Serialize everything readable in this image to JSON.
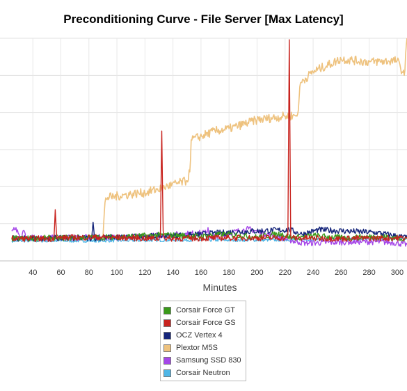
{
  "chart_data": {
    "type": "line",
    "title": "Preconditioning Curve - File Server [Max Latency]",
    "xlabel": "Minutes",
    "ylabel": "",
    "xlim": [
      25,
      307
    ],
    "ylim": [
      0,
      300
    ],
    "x_ticks": [
      40,
      60,
      80,
      100,
      120,
      140,
      160,
      180,
      200,
      220,
      240,
      260,
      280,
      300
    ],
    "y_gridlines": [
      0,
      50,
      100,
      150,
      200,
      250,
      300
    ],
    "grid": true,
    "legend_position": "bottom-center",
    "series": [
      {
        "name": "Corsair Force GT",
        "color": "#3a9a1a",
        "baseline": 30,
        "x": [
          25,
          60,
          100,
          133,
          160,
          178,
          200,
          217,
          225,
          240,
          262,
          285,
          307
        ],
        "y": [
          30,
          31,
          32,
          35,
          33,
          36,
          32,
          37,
          31,
          34,
          31,
          33,
          30
        ]
      },
      {
        "name": "Corsair Force GS",
        "color": "#c8231e",
        "baseline": 30,
        "x": [
          25,
          55,
          56,
          57,
          90,
          130,
          131,
          132,
          133,
          134,
          180,
          221,
          222,
          223,
          224,
          225,
          260,
          307
        ],
        "y": [
          30,
          30,
          69,
          31,
          32,
          30,
          32,
          175,
          41,
          30,
          31,
          31,
          35,
          298,
          35,
          31,
          30,
          31
        ]
      },
      {
        "name": "OCZ Vertex 4",
        "color": "#14247a",
        "baseline": 30,
        "x": [
          25,
          82,
          83,
          84,
          120,
          152,
          183,
          223,
          232,
          244,
          286,
          307
        ],
        "y": [
          30,
          31,
          52,
          31,
          33,
          35,
          39,
          42,
          36,
          42,
          38,
          31
        ]
      },
      {
        "name": "Plextor M5S",
        "color": "#eec27e",
        "baseline": 50,
        "x": [
          90,
          91,
          92,
          110,
          120,
          132,
          135,
          150,
          152,
          153,
          170,
          180,
          200,
          220,
          228,
          229,
          231,
          240,
          260,
          280,
          300,
          305,
          307
        ],
        "y": [
          30,
          65,
          85,
          90,
          92,
          98,
          100,
          108,
          120,
          163,
          175,
          178,
          190,
          195,
          196,
          198,
          240,
          255,
          272,
          268,
          270,
          250,
          300
        ]
      },
      {
        "name": "Samsung SSD 830",
        "color": "#a547e8",
        "baseline": 30,
        "x": [
          25,
          27,
          28,
          31,
          34,
          35,
          110,
          164,
          165,
          166,
          194,
          205,
          230,
          235,
          275,
          296,
          307
        ],
        "y": [
          40,
          42,
          45,
          30,
          40,
          31,
          32,
          38,
          45,
          32,
          43,
          37,
          25,
          24,
          26,
          25,
          22
        ]
      },
      {
        "name": "Corsair Neutron",
        "color": "#4fb6e6",
        "baseline": 27,
        "x": [
          25,
          80,
          140,
          200,
          250,
          307
        ],
        "y": [
          27,
          27,
          28,
          28,
          29,
          30
        ]
      }
    ]
  }
}
